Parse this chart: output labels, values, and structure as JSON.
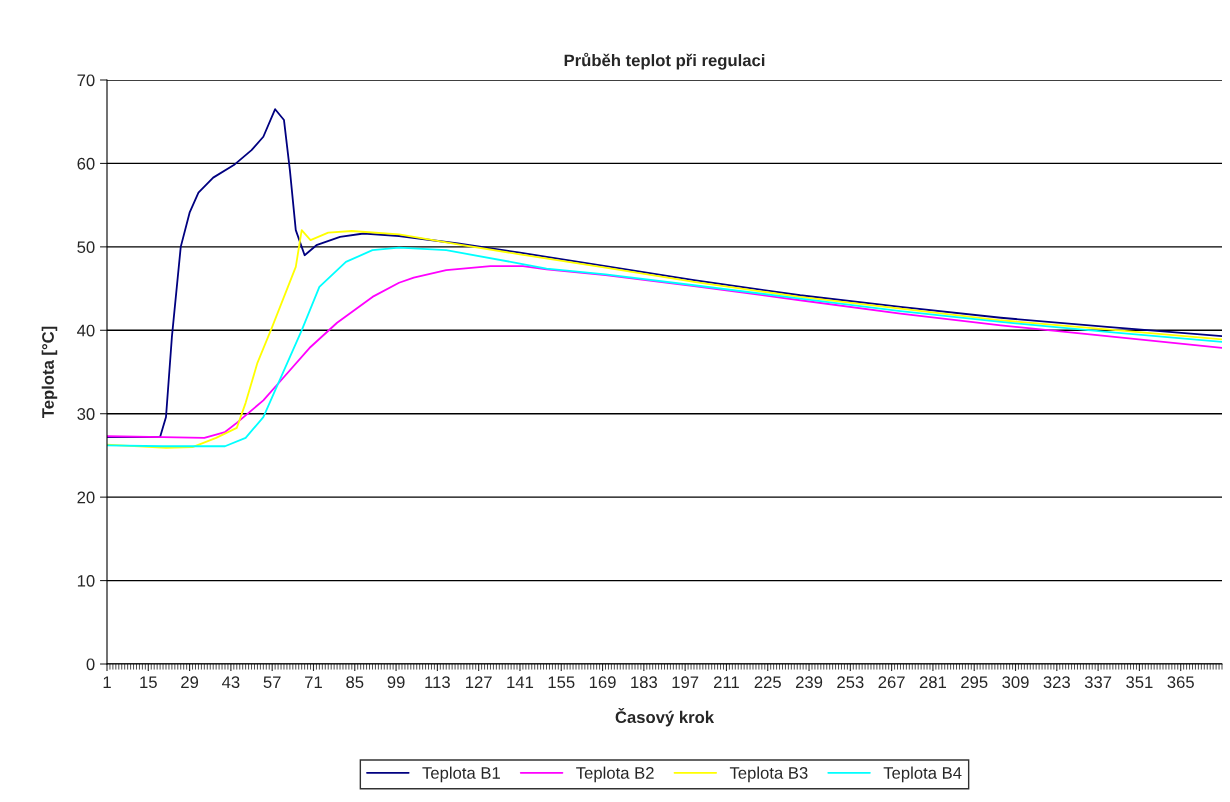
{
  "chart_data": {
    "type": "line",
    "title": "Průběh teplot při regulaci",
    "xlabel": "Časový krok",
    "ylabel": "Teplota [°C]",
    "xlim": [
      1,
      379
    ],
    "xticks": [
      1,
      15,
      29,
      43,
      57,
      71,
      85,
      99,
      113,
      127,
      141,
      155,
      169,
      183,
      197,
      211,
      225,
      239,
      253,
      267,
      281,
      295,
      309,
      323,
      337,
      351,
      365
    ],
    "ylim": [
      0,
      70
    ],
    "yticks": [
      0,
      10,
      20,
      30,
      40,
      50,
      60,
      70
    ],
    "grid": "y",
    "legend": "bottom",
    "marker": "none",
    "line_style": "solid",
    "series": [
      {
        "name": "Teplota B1",
        "color": "#000080",
        "x": [
          1,
          19,
          21,
          23,
          26,
          29,
          32,
          37,
          44,
          50,
          54,
          58,
          61,
          63,
          65,
          68,
          72,
          80,
          88,
          100,
          120,
          141,
          170,
          200,
          236,
          270,
          304,
          340,
          379
        ],
        "values": [
          27.2,
          27.2,
          29.6,
          39.2,
          50.0,
          54.1,
          56.5,
          58.3,
          59.8,
          61.6,
          63.2,
          66.5,
          65.2,
          59.2,
          52.0,
          49.0,
          50.2,
          51.2,
          51.6,
          51.3,
          50.4,
          49.3,
          47.7,
          46.0,
          44.2,
          42.8,
          41.5,
          40.4,
          39.3
        ]
      },
      {
        "name": "Teplota B2",
        "color": "#ff00ff",
        "x": [
          1,
          20,
          34,
          41,
          45,
          54,
          61,
          70,
          79,
          91,
          100,
          105,
          116,
          131,
          142,
          150,
          170,
          200,
          236,
          270,
          304,
          340,
          379
        ],
        "values": [
          27.3,
          27.2,
          27.1,
          27.8,
          28.9,
          31.6,
          34.4,
          38.0,
          40.9,
          44.0,
          45.7,
          46.3,
          47.2,
          47.7,
          47.7,
          47.3,
          46.6,
          45.3,
          43.6,
          42.0,
          40.6,
          39.3,
          37.9
        ]
      },
      {
        "name": "Teplota B3",
        "color": "#ffff00",
        "x": [
          1,
          21,
          30,
          38,
          45,
          48,
          52,
          57,
          61,
          65,
          67,
          70,
          76,
          84,
          100,
          120,
          141,
          170,
          200,
          236,
          270,
          304,
          340,
          379
        ],
        "values": [
          26.3,
          25.9,
          26.0,
          27.1,
          28.3,
          31.3,
          36.1,
          40.4,
          44.0,
          47.6,
          52.0,
          50.8,
          51.7,
          51.9,
          51.5,
          50.3,
          49.1,
          47.5,
          45.8,
          44.0,
          42.6,
          41.2,
          40.1,
          38.9
        ]
      },
      {
        "name": "Teplota B4",
        "color": "#00ffff",
        "x": [
          1,
          20,
          41,
          48,
          54,
          61,
          67,
          73,
          82,
          91,
          100,
          116,
          141,
          150,
          170,
          200,
          236,
          270,
          304,
          340,
          379
        ],
        "values": [
          26.2,
          26.1,
          26.1,
          27.1,
          29.6,
          35.2,
          40.0,
          45.2,
          48.2,
          49.6,
          49.9,
          49.6,
          48.0,
          47.4,
          46.7,
          45.4,
          43.8,
          42.3,
          41.0,
          39.8,
          38.6
        ]
      }
    ]
  }
}
